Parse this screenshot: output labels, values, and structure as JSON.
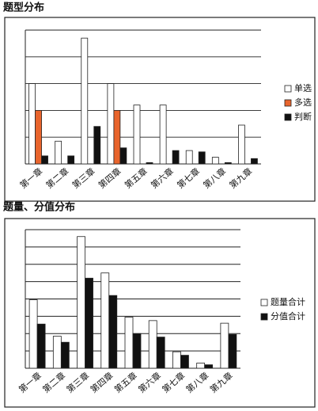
{
  "charts": [
    {
      "chart_data": {
        "type": "bar",
        "title": "题型分布",
        "categories": [
          "第一章",
          "第二章",
          "第三章",
          "第四章",
          "第五章",
          "第六章",
          "第七章",
          "第八章",
          "第九章"
        ],
        "series": [
          {
            "name": "单选",
            "color": "#ffffff",
            "values": [
              3.0,
              0.85,
              4.7,
              3.0,
              2.2,
              2.2,
              0.5,
              0.25,
              1.45
            ]
          },
          {
            "name": "多选",
            "color": "#e8642c",
            "values": [
              2.0,
              0,
              0,
              2.0,
              0,
              0,
              0,
              0,
              0
            ]
          },
          {
            "name": "判断",
            "color": "#111111",
            "values": [
              0.3,
              0.3,
              1.4,
              0.6,
              0.05,
              0.5,
              0.45,
              0.05,
              0.2
            ]
          }
        ],
        "ylim": [
          0,
          5
        ],
        "yticks": [
          0,
          1,
          2,
          3,
          4,
          5
        ],
        "grid": true,
        "legend": "right"
      }
    },
    {
      "chart_data": {
        "type": "bar",
        "title": "题量、分值分布",
        "categories": [
          "第一章",
          "第二章",
          "第三章",
          "第四章",
          "第五章",
          "第六章",
          "第七章",
          "第八章",
          "第九章"
        ],
        "series": [
          {
            "name": "题量合计",
            "color": "#ffffff",
            "values": [
              3.95,
              1.85,
              7.6,
              5.5,
              2.95,
              2.75,
              0.95,
              0.3,
              2.6
            ]
          },
          {
            "name": "分值合计",
            "color": "#111111",
            "values": [
              2.55,
              1.5,
              5.2,
              4.2,
              2.0,
              1.8,
              0.75,
              0.2,
              1.95
            ]
          }
        ],
        "ylim": [
          0,
          8
        ],
        "yticks": [
          0,
          1,
          2,
          3,
          4,
          5,
          6,
          7,
          8
        ],
        "grid": true,
        "legend": "right"
      }
    }
  ]
}
